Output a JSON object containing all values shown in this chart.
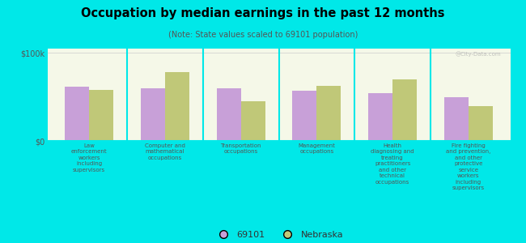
{
  "title": "Occupation by median earnings in the past 12 months",
  "subtitle": "(Note: State values scaled to 69101 population)",
  "background_color": "#00e8e8",
  "plot_bg_top_color": "#e8edcc",
  "plot_bg_bottom_color": "#f5f8e8",
  "categories": [
    "Law\nenforcement\nworkers\nincluding\nsupervisors",
    "Computer and\nmathematical\noccupations",
    "Transportation\noccupations",
    "Management\noccupations",
    "Health\ndiagnosing and\ntreating\npractitioners\nand other\ntechnical\noccupations",
    "Fire fighting\nand prevention,\nand other\nprotective\nservice\nworkers\nincluding\nsupervisors"
  ],
  "values_69101": [
    62000,
    60000,
    60000,
    57000,
    54000,
    50000
  ],
  "values_nebraska": [
    58000,
    78000,
    45000,
    63000,
    70000,
    40000
  ],
  "color_69101": "#c8a0d8",
  "color_nebraska": "#c0c878",
  "legend_labels": [
    "69101",
    "Nebraska"
  ],
  "ylim": [
    0,
    105000
  ],
  "yticks": [
    0,
    100000
  ],
  "ytick_labels": [
    "$0",
    "$100k"
  ],
  "bar_width": 0.32,
  "watermark": "@City-Data.com"
}
